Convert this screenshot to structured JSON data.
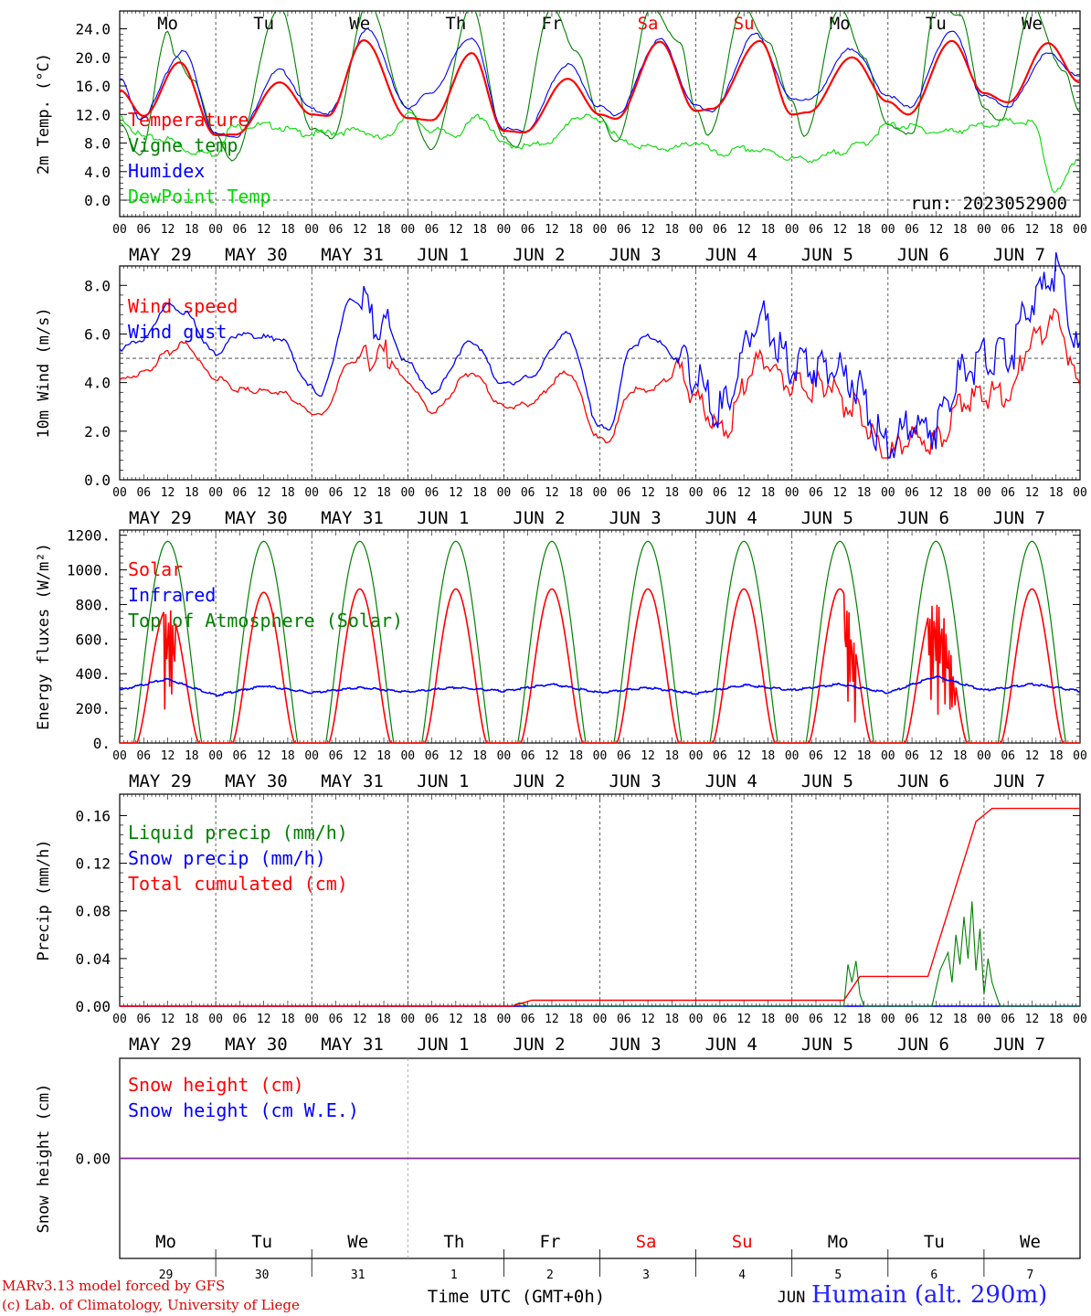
{
  "colors": {
    "temperature": "#ff0000",
    "vigne": "#008000",
    "humidex": "#0000ff",
    "dewpoint": "#00dd00",
    "grid": "#444444",
    "snow_line": "#7f2aa0"
  },
  "days": {
    "weekdays": [
      "Mo",
      "Tu",
      "We",
      "Th",
      "Fr",
      "Sa",
      "Su",
      "Mo",
      "Tu",
      "We"
    ],
    "weekend_flags": [
      false,
      false,
      false,
      false,
      false,
      true,
      true,
      false,
      false,
      false
    ],
    "date_labels": [
      "MAY 29",
      "MAY 30",
      "MAY 31",
      "JUN  1",
      "JUN  2",
      "JUN  3",
      "JUN  4",
      "JUN  5",
      "JUN  6",
      "JUN  7"
    ],
    "day_numbers": [
      "29",
      "30",
      "31",
      "1",
      "2",
      "3",
      "4",
      "5",
      "6",
      "7"
    ],
    "hour_ticks": [
      "00",
      "06",
      "12",
      "18"
    ],
    "final_hour": "00"
  },
  "run_label": "run: 2023052900",
  "bottom": {
    "xlabel": "Time UTC (GMT+0h)",
    "month_mark": "JUN"
  },
  "footer": {
    "credit_line1": "MARv3.13 model forced by GFS",
    "credit_line2": "(c) Lab. of Climatology, University of Liege",
    "station": "Humain (alt. 290m)"
  },
  "chart_data": [
    {
      "type": "line",
      "ylabel": "2m Temp. (°C)",
      "ylim": [
        -2.3,
        26.5
      ],
      "yticks": [
        "0.0",
        "4.0",
        "8.0",
        "12.0",
        "16.0",
        "20.0",
        "24.0"
      ],
      "yticks_values": [
        0,
        4,
        8,
        12,
        16,
        20,
        24
      ],
      "legend": [
        "Temperature",
        "Vigne temp",
        "Humidex",
        "DewPoint Temp"
      ],
      "reference_line": 0,
      "x_unit": "hours since 2023-05-29 00 UTC",
      "series": [
        {
          "name": "Temperature",
          "x": [
            0,
            6,
            15,
            24,
            29,
            40,
            48,
            52,
            61,
            72,
            78,
            88,
            96,
            101,
            112,
            120,
            124,
            135,
            144,
            148,
            160,
            168,
            172,
            183,
            192,
            197,
            208,
            216,
            222,
            232,
            240
          ],
          "values": [
            15.4,
            11.8,
            19.3,
            9.1,
            9.2,
            16.5,
            12.0,
            11.8,
            22.4,
            11.5,
            11.2,
            20.6,
            9.7,
            9.5,
            17.0,
            12.0,
            11.4,
            22.2,
            12.5,
            12.8,
            22.3,
            12.0,
            12.3,
            20.0,
            13.8,
            12.0,
            22.3,
            15.0,
            13.7,
            22.0,
            16.5
          ]
        },
        {
          "name": "Vigne temp",
          "x": [
            0,
            5,
            12,
            14,
            18,
            24,
            28,
            40,
            48,
            53,
            62,
            72,
            78,
            88,
            96,
            99,
            108,
            114,
            120,
            124,
            133,
            140,
            144,
            147,
            156,
            162,
            168,
            171,
            180,
            186,
            192,
            198,
            204,
            210,
            216,
            220,
            228,
            236,
            240
          ],
          "values": [
            10.9,
            6.2,
            23.5,
            20.0,
            17.0,
            9.4,
            5.5,
            27.0,
            10.0,
            8.8,
            27.5,
            12.8,
            7.2,
            27.0,
            8.8,
            7.5,
            27.0,
            21.0,
            11.8,
            8.0,
            27.0,
            22.0,
            12.8,
            9.0,
            27.0,
            22.0,
            13.8,
            9.0,
            27.0,
            20.0,
            10.5,
            9.2,
            27.0,
            26.0,
            13.0,
            11.0,
            27.0,
            18.0,
            12.4
          ]
        },
        {
          "name": "Humidex",
          "x": [
            0,
            5,
            16,
            24,
            29,
            40,
            48,
            52,
            62,
            72,
            77,
            88,
            96,
            101,
            112,
            120,
            124,
            135,
            144,
            148,
            159,
            168,
            172,
            183,
            192,
            197,
            208,
            216,
            222,
            232,
            240
          ],
          "values": [
            17.0,
            11.5,
            20.8,
            9.3,
            9.0,
            18.2,
            12.8,
            12.1,
            23.8,
            13.0,
            14.8,
            22.8,
            10.0,
            9.6,
            19.0,
            13.0,
            12.0,
            22.5,
            13.2,
            12.5,
            23.2,
            14.3,
            14.0,
            21.2,
            14.7,
            13.0,
            23.7,
            14.5,
            13.2,
            20.5,
            17.2
          ]
        },
        {
          "name": "DewPoint Temp",
          "x": [
            0,
            6,
            12,
            18,
            24,
            28,
            36,
            48,
            54,
            60,
            66,
            72,
            78,
            84,
            90,
            96,
            102,
            108,
            114,
            120,
            126,
            132,
            138,
            144,
            150,
            156,
            162,
            168,
            174,
            180,
            186,
            192,
            198,
            204,
            210,
            216,
            222,
            228,
            234,
            240
          ],
          "values": [
            11.5,
            8.8,
            8.5,
            6.8,
            6.5,
            10.2,
            10.5,
            9.3,
            9.5,
            9.8,
            8.5,
            12.0,
            9.8,
            9.2,
            11.8,
            7.8,
            7.5,
            8.3,
            11.7,
            11.3,
            8.2,
            7.4,
            7.2,
            8.1,
            6.4,
            7.2,
            6.8,
            5.8,
            5.7,
            6.8,
            8.0,
            10.5,
            10.3,
            9.5,
            9.8,
            10.5,
            11.0,
            10.8,
            1.2,
            6.0
          ]
        }
      ]
    },
    {
      "type": "line",
      "ylabel": "10m Wind (m/s)",
      "ylim": [
        0,
        8.8
      ],
      "yticks": [
        "0.0",
        "2.0",
        "4.0",
        "6.0",
        "8.0"
      ],
      "yticks_values": [
        0,
        2,
        4,
        6,
        8
      ],
      "legend": [
        "Wind speed",
        "Wind gust"
      ],
      "reference_line": 5,
      "series": [
        {
          "name": "Wind speed",
          "x": [
            0,
            6,
            12,
            16,
            24,
            30,
            40,
            48,
            50,
            58,
            66,
            72,
            78,
            88,
            96,
            102,
            112,
            120,
            122,
            128,
            132,
            140,
            144,
            150,
            160,
            168,
            172,
            176,
            182,
            192,
            198,
            204,
            210,
            216,
            222,
            228,
            234,
            240
          ],
          "values": [
            4.1,
            4.4,
            5.2,
            5.6,
            4.2,
            3.7,
            3.6,
            2.8,
            2.6,
            4.9,
            5.2,
            4.0,
            2.8,
            4.4,
            3.0,
            3.1,
            4.4,
            1.7,
            1.6,
            3.7,
            3.7,
            4.4,
            3.4,
            1.9,
            4.9,
            4.0,
            3.7,
            4.0,
            3.1,
            1.1,
            1.7,
            1.6,
            3.1,
            3.5,
            3.5,
            5.8,
            6.5,
            4.0
          ]
        },
        {
          "name": "Wind gust",
          "x": [
            0,
            6,
            12,
            16,
            24,
            30,
            40,
            48,
            50,
            58,
            66,
            72,
            78,
            88,
            96,
            102,
            112,
            120,
            122,
            128,
            132,
            140,
            144,
            150,
            160,
            168,
            172,
            176,
            182,
            192,
            198,
            204,
            210,
            216,
            222,
            228,
            234,
            240
          ],
          "values": [
            5.4,
            5.8,
            7.2,
            6.9,
            5.2,
            6.0,
            5.8,
            3.8,
            3.5,
            7.4,
            6.4,
            4.8,
            3.6,
            5.7,
            3.9,
            4.2,
            6.0,
            2.2,
            2.0,
            5.5,
            5.9,
            5.0,
            4.1,
            2.8,
            6.6,
            4.8,
            4.5,
            4.8,
            4.2,
            1.4,
            2.2,
            2.1,
            4.4,
            5.0,
            5.0,
            7.4,
            8.5,
            5.2
          ]
        }
      ]
    },
    {
      "type": "line",
      "ylabel": "Energy fluxes (W/m²)",
      "ylim": [
        0,
        1230
      ],
      "yticks": [
        "0.",
        "200.",
        "400.",
        "600.",
        "800.",
        "1000.",
        "1200."
      ],
      "yticks_values": [
        0,
        200,
        400,
        600,
        800,
        1000,
        1200
      ],
      "legend": [
        "Solar",
        "Infrared",
        "Top of Atmosphere (Solar)"
      ],
      "toa_peak": 1165,
      "solar_daily_peaks": [
        780,
        870,
        890,
        890,
        890,
        890,
        890,
        890,
        820,
        890
      ],
      "infrared_level": 300,
      "series": [
        {
          "name": "Solar",
          "x": [
            4,
            12,
            20,
            28,
            36,
            44,
            52,
            60,
            68,
            76,
            84,
            92,
            100,
            108,
            116,
            124,
            132,
            140,
            148,
            156,
            164,
            172,
            180,
            188,
            196,
            204,
            212,
            220,
            228,
            236
          ],
          "values": [
            0,
            780,
            0,
            0,
            870,
            0,
            0,
            890,
            0,
            0,
            890,
            0,
            0,
            890,
            0,
            0,
            890,
            0,
            0,
            890,
            0,
            0,
            890,
            0,
            0,
            820,
            0,
            0,
            890,
            0
          ]
        },
        {
          "name": "Infrared",
          "x": [
            0,
            12,
            24,
            36,
            48,
            60,
            72,
            84,
            96,
            108,
            120,
            132,
            144,
            156,
            168,
            180,
            192,
            204,
            216,
            228,
            240
          ],
          "values": [
            305,
            370,
            275,
            330,
            290,
            320,
            295,
            320,
            300,
            340,
            290,
            320,
            285,
            335,
            305,
            340,
            290,
            385,
            305,
            340,
            300
          ]
        }
      ]
    },
    {
      "type": "line",
      "ylabel": "Precip (mm/h)",
      "ylim": [
        0,
        0.178
      ],
      "yticks": [
        "0.00",
        "0.04",
        "0.08",
        "0.12",
        "0.16"
      ],
      "yticks_values": [
        0,
        0.04,
        0.08,
        0.12,
        0.16
      ],
      "legend": [
        "Liquid precip (mm/h)",
        "Snow precip (mm/h)",
        "Total cumulated (cm)"
      ],
      "series": [
        {
          "name": "Total cumulated (cm)",
          "x": [
            0,
            98,
            103,
            181,
            185,
            202,
            208,
            214,
            218,
            240
          ],
          "values": [
            0,
            0,
            0.005,
            0.005,
            0.025,
            0.025,
            0.09,
            0.155,
            0.166,
            0.166
          ]
        },
        {
          "name": "Liquid precip (mm/h)",
          "x": [
            0,
            98,
            100,
            102,
            181,
            182,
            183,
            184,
            185,
            186,
            203,
            205,
            207,
            208,
            209,
            210,
            211,
            212,
            213,
            214,
            215,
            216,
            217,
            218,
            219,
            220,
            240
          ],
          "values": [
            0,
            0,
            0.003,
            0,
            0,
            0.035,
            0.02,
            0.038,
            0.01,
            0,
            0,
            0.03,
            0.045,
            0.02,
            0.06,
            0.035,
            0.075,
            0.04,
            0.088,
            0.03,
            0.065,
            0.01,
            0.04,
            0.02,
            0.01,
            0,
            0
          ]
        },
        {
          "name": "Snow precip (mm/h)",
          "x": [
            0,
            240
          ],
          "values": [
            0,
            0
          ]
        }
      ]
    },
    {
      "type": "line",
      "ylabel": "Snow height (cm)",
      "ylim": [
        -1,
        1
      ],
      "yticks": [
        "0.00"
      ],
      "yticks_values": [
        0
      ],
      "legend": [
        "Snow height (cm)",
        "Snow height (cm W.E.)"
      ],
      "series": [
        {
          "name": "Snow height (cm)",
          "x": [
            0,
            240
          ],
          "values": [
            0,
            0
          ]
        },
        {
          "name": "Snow height (cm W.E.)",
          "x": [
            0,
            240
          ],
          "values": [
            0,
            0
          ]
        }
      ]
    }
  ]
}
